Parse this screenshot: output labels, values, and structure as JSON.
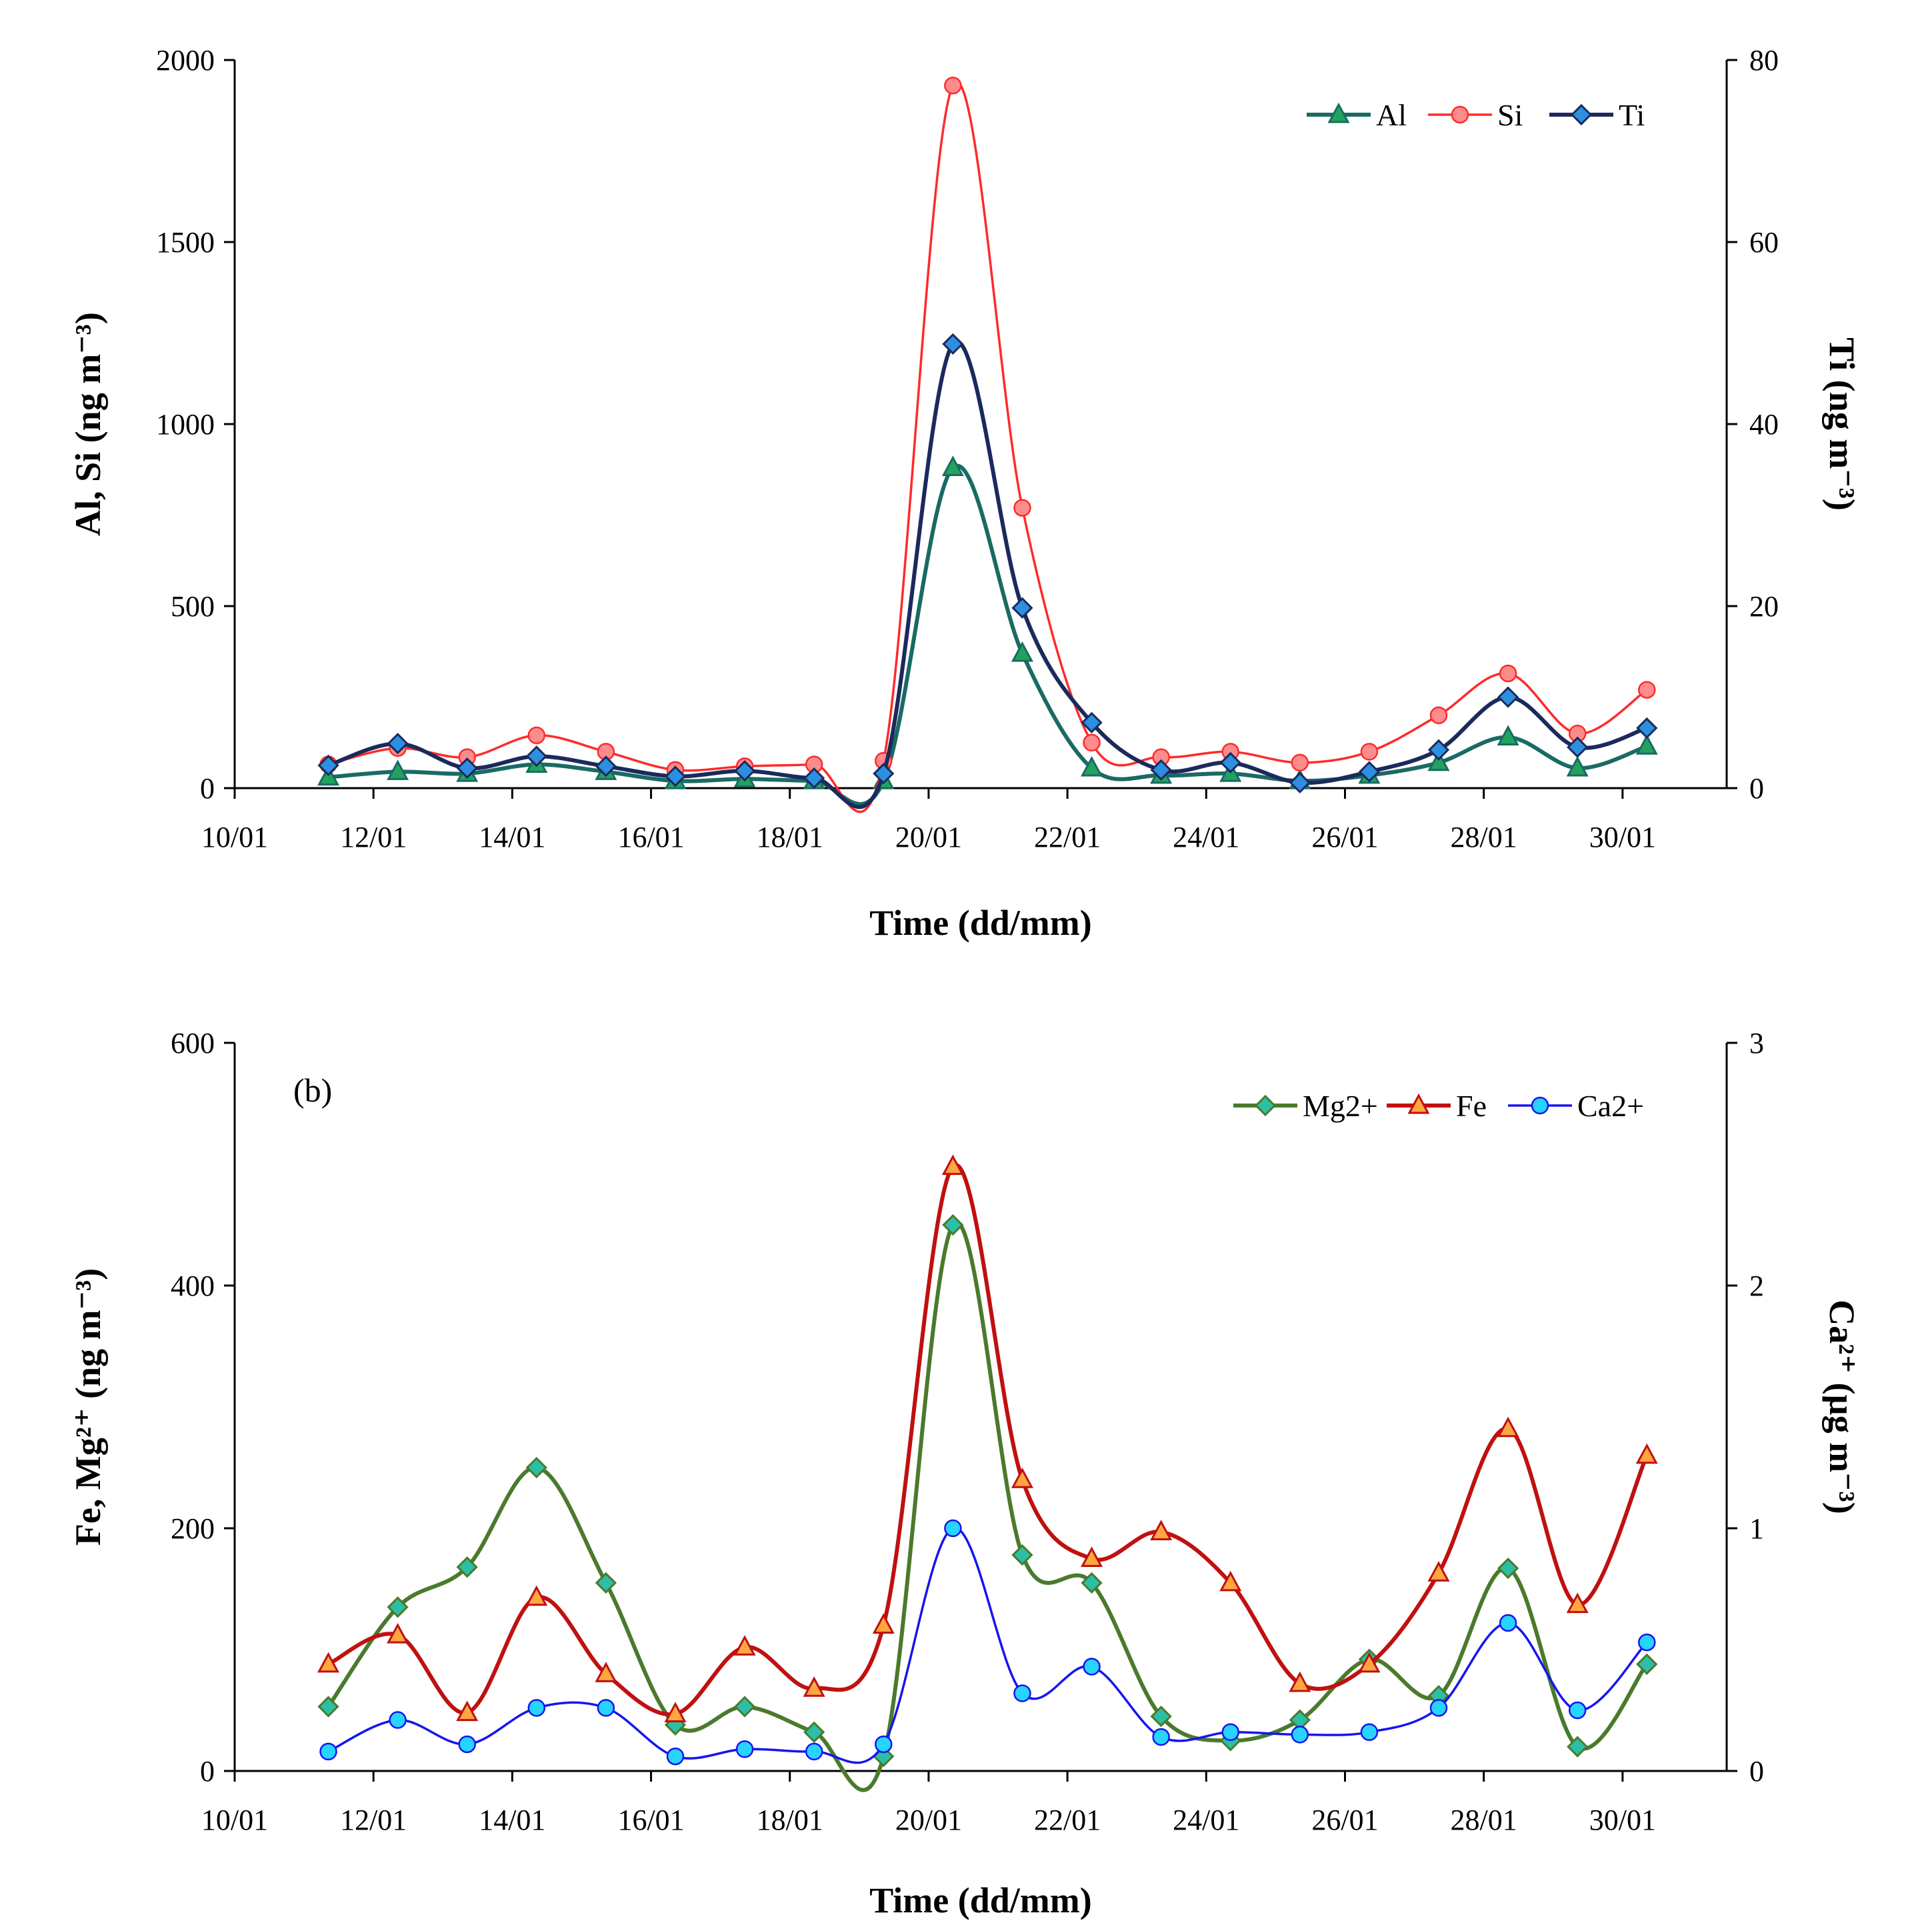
{
  "chart_data": [
    {
      "type": "line",
      "panel_label": "",
      "xlabel": "Time (dd/mm)",
      "ylabel_left": "Al, Si (ng m⁻³)",
      "ylabel_right": "Ti (ng m⁻³)",
      "ylim_left": [
        0,
        2000
      ],
      "ylim_right": [
        0,
        80
      ],
      "yticks_left": [
        "0",
        "500",
        "1000",
        "1500",
        "2000"
      ],
      "yticks_right": [
        "0",
        "20",
        "40",
        "60",
        "80"
      ],
      "xlim": [
        10,
        31.5
      ],
      "xticks": [
        10,
        12,
        14,
        16,
        18,
        20,
        22,
        24,
        26,
        28,
        30
      ],
      "xtick_labels": [
        "10/01",
        "12/01",
        "14/01",
        "16/01",
        "18/01",
        "20/01",
        "22/01",
        "24/01",
        "26/01",
        "28/01",
        "30/01"
      ],
      "x": [
        11.35,
        12.35,
        13.35,
        14.35,
        15.35,
        16.35,
        17.35,
        18.35,
        19.35,
        20.35,
        21.35,
        22.35,
        23.35,
        24.35,
        25.35,
        26.35,
        27.35,
        28.35,
        29.35,
        30.35
      ],
      "legend_position": "top-right",
      "series": [
        {
          "name": "Al",
          "axis": "left",
          "color": "#1a6a64",
          "marker": "triangle",
          "marker_fill": "#21a35e",
          "values": [
            30,
            45,
            40,
            65,
            45,
            20,
            25,
            20,
            20,
            880,
            370,
            55,
            35,
            40,
            20,
            35,
            70,
            140,
            55,
            115
          ]
        },
        {
          "name": "Si",
          "axis": "left",
          "color": "#ff2a2a",
          "marker": "circle",
          "marker_fill": "#ff8c8c",
          "values": [
            65,
            110,
            85,
            145,
            100,
            50,
            60,
            65,
            75,
            1930,
            770,
            125,
            85,
            100,
            70,
            100,
            200,
            315,
            150,
            270
          ]
        },
        {
          "name": "Ti",
          "axis": "right",
          "color": "#1b2a5c",
          "marker": "diamond",
          "marker_fill": "#2d8fe0",
          "values": [
            2.5,
            4.9,
            2.2,
            3.5,
            2.4,
            1.3,
            1.9,
            1.1,
            1.6,
            48.8,
            19.8,
            7.2,
            2.0,
            2.8,
            0.6,
            1.8,
            4.2,
            10.0,
            4.5,
            6.6
          ]
        }
      ]
    },
    {
      "type": "line",
      "panel_label": "(b)",
      "xlabel": "Time (dd/mm)",
      "ylabel_left": "Fe, Mg²⁺ (ng m⁻³)",
      "ylabel_right": "Ca²⁺ (µg m⁻³)",
      "ylim_left": [
        0,
        600
      ],
      "ylim_right": [
        0,
        3
      ],
      "yticks_left": [
        "0",
        "200",
        "400",
        "600"
      ],
      "yticks_right": [
        "0",
        "1",
        "2",
        "3"
      ],
      "xlim": [
        10,
        31.5
      ],
      "xticks": [
        10,
        12,
        14,
        16,
        18,
        20,
        22,
        24,
        26,
        28,
        30
      ],
      "xtick_labels": [
        "10/01",
        "12/01",
        "14/01",
        "16/01",
        "18/01",
        "20/01",
        "22/01",
        "24/01",
        "26/01",
        "28/01",
        "30/01"
      ],
      "x": [
        11.35,
        12.35,
        13.35,
        14.35,
        15.35,
        16.35,
        17.35,
        18.35,
        19.35,
        20.35,
        21.35,
        22.35,
        23.35,
        24.35,
        25.35,
        26.35,
        27.35,
        28.35,
        29.35,
        30.35
      ],
      "legend_position": "top-right",
      "series": [
        {
          "name": "Mg2+",
          "axis": "left",
          "color": "#4a7a2c",
          "marker": "diamond",
          "marker_fill": "#2bbfa6",
          "values": [
            53,
            135,
            168,
            250,
            155,
            38,
            53,
            32,
            12,
            450,
            178,
            155,
            45,
            25,
            42,
            92,
            62,
            167,
            20,
            88
          ]
        },
        {
          "name": "Fe",
          "axis": "left",
          "color": "#c01010",
          "marker": "triangle",
          "marker_fill": "#ffa640",
          "values": [
            88,
            112,
            48,
            143,
            80,
            47,
            102,
            68,
            120,
            498,
            240,
            175,
            197,
            155,
            72,
            88,
            163,
            282,
            137,
            260
          ]
        },
        {
          "name": "Ca2+",
          "axis": "right",
          "color": "#1515ee",
          "marker": "circle",
          "marker_fill": "#27d3ff",
          "values": [
            0.08,
            0.21,
            0.11,
            0.26,
            0.26,
            0.06,
            0.09,
            0.08,
            0.11,
            1.0,
            0.32,
            0.43,
            0.14,
            0.16,
            0.15,
            0.16,
            0.26,
            0.61,
            0.25,
            0.53
          ]
        }
      ]
    }
  ]
}
